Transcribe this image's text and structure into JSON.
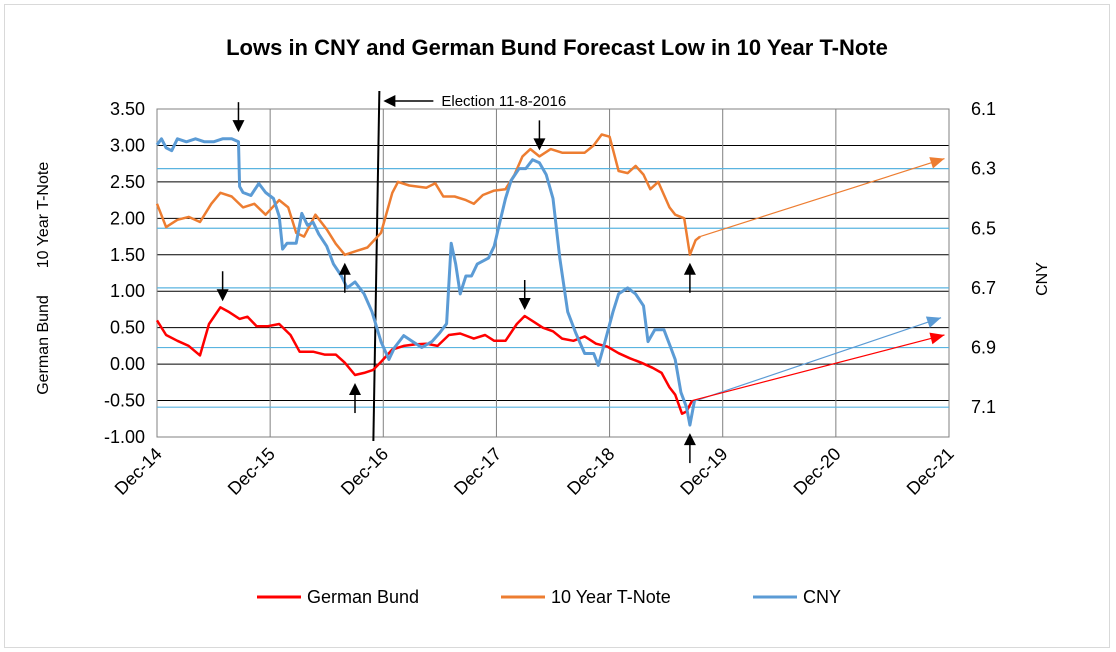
{
  "chart_data": {
    "type": "line",
    "title": "Lows in CNY and German Bund Forecast Low in 10 Year T-Note",
    "y_left_label_top": "10 Year T-Note",
    "y_left_label_bottom": "German Bund",
    "y_right_label": "CNY",
    "x_ticks": [
      "Dec-14",
      "Dec-15",
      "Dec-16",
      "Dec-17",
      "Dec-18",
      "Dec-19",
      "Dec-20",
      "Dec-21"
    ],
    "x_range": [
      2014.92,
      2021.92
    ],
    "y_left_ticks": [
      "3.50",
      "3.00",
      "2.50",
      "2.00",
      "1.50",
      "1.00",
      "0.50",
      "0.00",
      "-0.50",
      "-1.00"
    ],
    "y_left_range": [
      -1.0,
      3.5
    ],
    "y_right_ticks": [
      "6.1",
      "6.3",
      "6.5",
      "6.7",
      "6.9",
      "7.1"
    ],
    "y_right_range": [
      6.1,
      7.2
    ],
    "y_right_inverted": true,
    "grid": true,
    "legend_position": "bottom",
    "annotation": "Election 11-8-2016",
    "election_x": 2016.85,
    "colors": {
      "bund": "#ff0000",
      "tnote": "#ed7d31",
      "cny": "#5b9bd5",
      "hline": "#5ab4e0",
      "grid": "#000000"
    },
    "series": [
      {
        "name": "German Bund",
        "axis": "left",
        "points": [
          [
            2014.92,
            0.6
          ],
          [
            2015.0,
            0.4
          ],
          [
            2015.1,
            0.32
          ],
          [
            2015.2,
            0.25
          ],
          [
            2015.3,
            0.12
          ],
          [
            2015.38,
            0.55
          ],
          [
            2015.48,
            0.78
          ],
          [
            2015.55,
            0.72
          ],
          [
            2015.65,
            0.62
          ],
          [
            2015.72,
            0.65
          ],
          [
            2015.8,
            0.52
          ],
          [
            2015.9,
            0.52
          ],
          [
            2016.0,
            0.55
          ],
          [
            2016.1,
            0.4
          ],
          [
            2016.18,
            0.17
          ],
          [
            2016.3,
            0.17
          ],
          [
            2016.4,
            0.13
          ],
          [
            2016.5,
            0.13
          ],
          [
            2016.58,
            0.02
          ],
          [
            2016.67,
            -0.15
          ],
          [
            2016.75,
            -0.12
          ],
          [
            2016.83,
            -0.08
          ],
          [
            2016.9,
            0.03
          ],
          [
            2017.0,
            0.2
          ],
          [
            2017.1,
            0.25
          ],
          [
            2017.2,
            0.27
          ],
          [
            2017.3,
            0.28
          ],
          [
            2017.4,
            0.25
          ],
          [
            2017.5,
            0.4
          ],
          [
            2017.6,
            0.42
          ],
          [
            2017.72,
            0.35
          ],
          [
            2017.82,
            0.4
          ],
          [
            2017.9,
            0.32
          ],
          [
            2018.0,
            0.32
          ],
          [
            2018.1,
            0.55
          ],
          [
            2018.17,
            0.66
          ],
          [
            2018.25,
            0.58
          ],
          [
            2018.33,
            0.5
          ],
          [
            2018.42,
            0.45
          ],
          [
            2018.5,
            0.35
          ],
          [
            2018.6,
            0.32
          ],
          [
            2018.7,
            0.38
          ],
          [
            2018.8,
            0.28
          ],
          [
            2018.9,
            0.24
          ],
          [
            2019.0,
            0.15
          ],
          [
            2019.1,
            0.08
          ],
          [
            2019.2,
            0.02
          ],
          [
            2019.3,
            -0.05
          ],
          [
            2019.38,
            -0.12
          ],
          [
            2019.45,
            -0.32
          ],
          [
            2019.5,
            -0.42
          ],
          [
            2019.56,
            -0.68
          ],
          [
            2019.6,
            -0.65
          ],
          [
            2019.65,
            -0.5
          ]
        ]
      },
      {
        "name": "10 Year T-Note",
        "axis": "left",
        "points": [
          [
            2014.92,
            2.2
          ],
          [
            2015.0,
            1.88
          ],
          [
            2015.1,
            1.98
          ],
          [
            2015.2,
            2.02
          ],
          [
            2015.3,
            1.95
          ],
          [
            2015.4,
            2.2
          ],
          [
            2015.48,
            2.35
          ],
          [
            2015.58,
            2.3
          ],
          [
            2015.68,
            2.15
          ],
          [
            2015.78,
            2.2
          ],
          [
            2015.88,
            2.05
          ],
          [
            2016.0,
            2.25
          ],
          [
            2016.08,
            2.15
          ],
          [
            2016.15,
            1.8
          ],
          [
            2016.22,
            1.75
          ],
          [
            2016.32,
            2.05
          ],
          [
            2016.42,
            1.85
          ],
          [
            2016.5,
            1.65
          ],
          [
            2016.58,
            1.5
          ],
          [
            2016.68,
            1.55
          ],
          [
            2016.78,
            1.6
          ],
          [
            2016.9,
            1.8
          ],
          [
            2017.0,
            2.35
          ],
          [
            2017.05,
            2.5
          ],
          [
            2017.15,
            2.45
          ],
          [
            2017.3,
            2.42
          ],
          [
            2017.38,
            2.48
          ],
          [
            2017.45,
            2.3
          ],
          [
            2017.55,
            2.3
          ],
          [
            2017.65,
            2.25
          ],
          [
            2017.72,
            2.2
          ],
          [
            2017.8,
            2.32
          ],
          [
            2017.9,
            2.38
          ],
          [
            2018.0,
            2.4
          ],
          [
            2018.08,
            2.6
          ],
          [
            2018.15,
            2.85
          ],
          [
            2018.22,
            2.95
          ],
          [
            2018.3,
            2.85
          ],
          [
            2018.4,
            2.95
          ],
          [
            2018.5,
            2.9
          ],
          [
            2018.6,
            2.9
          ],
          [
            2018.7,
            2.9
          ],
          [
            2018.78,
            3.0
          ],
          [
            2018.85,
            3.15
          ],
          [
            2018.92,
            3.12
          ],
          [
            2019.0,
            2.65
          ],
          [
            2019.08,
            2.62
          ],
          [
            2019.15,
            2.72
          ],
          [
            2019.22,
            2.6
          ],
          [
            2019.28,
            2.4
          ],
          [
            2019.35,
            2.5
          ],
          [
            2019.45,
            2.15
          ],
          [
            2019.5,
            2.05
          ],
          [
            2019.58,
            2.0
          ],
          [
            2019.63,
            1.5
          ],
          [
            2019.68,
            1.7
          ],
          [
            2019.72,
            1.75
          ]
        ]
      },
      {
        "name": "CNY",
        "axis": "right",
        "points": [
          [
            2014.92,
            6.22
          ],
          [
            2014.96,
            6.2
          ],
          [
            2015.0,
            6.23
          ],
          [
            2015.05,
            6.24
          ],
          [
            2015.1,
            6.2
          ],
          [
            2015.18,
            6.21
          ],
          [
            2015.26,
            6.2
          ],
          [
            2015.34,
            6.21
          ],
          [
            2015.42,
            6.21
          ],
          [
            2015.5,
            6.2
          ],
          [
            2015.58,
            6.2
          ],
          [
            2015.64,
            6.21
          ],
          [
            2015.65,
            6.36
          ],
          [
            2015.68,
            6.38
          ],
          [
            2015.75,
            6.39
          ],
          [
            2015.82,
            6.35
          ],
          [
            2015.88,
            6.38
          ],
          [
            2015.95,
            6.4
          ],
          [
            2016.0,
            6.46
          ],
          [
            2016.03,
            6.57
          ],
          [
            2016.07,
            6.55
          ],
          [
            2016.15,
            6.55
          ],
          [
            2016.2,
            6.45
          ],
          [
            2016.25,
            6.49
          ],
          [
            2016.3,
            6.48
          ],
          [
            2016.35,
            6.52
          ],
          [
            2016.42,
            6.56
          ],
          [
            2016.48,
            6.62
          ],
          [
            2016.55,
            6.66
          ],
          [
            2016.6,
            6.7
          ],
          [
            2016.67,
            6.68
          ],
          [
            2016.75,
            6.72
          ],
          [
            2016.82,
            6.78
          ],
          [
            2016.9,
            6.88
          ],
          [
            2016.97,
            6.94
          ],
          [
            2017.02,
            6.9
          ],
          [
            2017.1,
            6.86
          ],
          [
            2017.18,
            6.88
          ],
          [
            2017.26,
            6.9
          ],
          [
            2017.35,
            6.88
          ],
          [
            2017.42,
            6.85
          ],
          [
            2017.48,
            6.82
          ],
          [
            2017.52,
            6.55
          ],
          [
            2017.56,
            6.62
          ],
          [
            2017.6,
            6.72
          ],
          [
            2017.65,
            6.66
          ],
          [
            2017.7,
            6.66
          ],
          [
            2017.75,
            6.62
          ],
          [
            2017.85,
            6.6
          ],
          [
            2017.9,
            6.56
          ],
          [
            2017.95,
            6.48
          ],
          [
            2018.0,
            6.4
          ],
          [
            2018.05,
            6.34
          ],
          [
            2018.12,
            6.3
          ],
          [
            2018.18,
            6.3
          ],
          [
            2018.24,
            6.27
          ],
          [
            2018.3,
            6.28
          ],
          [
            2018.36,
            6.32
          ],
          [
            2018.42,
            6.4
          ],
          [
            2018.48,
            6.6
          ],
          [
            2018.55,
            6.78
          ],
          [
            2018.62,
            6.85
          ],
          [
            2018.7,
            6.92
          ],
          [
            2018.78,
            6.92
          ],
          [
            2018.82,
            6.96
          ],
          [
            2018.88,
            6.88
          ],
          [
            2018.95,
            6.78
          ],
          [
            2019.0,
            6.72
          ],
          [
            2019.08,
            6.7
          ],
          [
            2019.15,
            6.72
          ],
          [
            2019.22,
            6.76
          ],
          [
            2019.26,
            6.88
          ],
          [
            2019.32,
            6.84
          ],
          [
            2019.4,
            6.84
          ],
          [
            2019.46,
            6.9
          ],
          [
            2019.5,
            6.94
          ],
          [
            2019.55,
            7.05
          ],
          [
            2019.6,
            7.1
          ],
          [
            2019.63,
            7.16
          ],
          [
            2019.67,
            7.08
          ]
        ]
      }
    ],
    "forecast_lines": [
      {
        "series": "10 Year T-Note",
        "axis": "left",
        "from": [
          2019.72,
          1.75
        ],
        "to": [
          2021.88,
          2.82
        ]
      },
      {
        "series": "CNY",
        "axis": "right",
        "from": [
          2019.67,
          7.08
        ],
        "to": [
          2021.85,
          6.8
        ]
      },
      {
        "series": "German Bund",
        "axis": "left",
        "from": [
          2019.65,
          -0.5
        ],
        "to": [
          2021.88,
          0.4
        ]
      }
    ],
    "horizontal_lines_right": [
      6.3,
      6.5,
      6.7,
      6.9,
      7.1
    ]
  }
}
